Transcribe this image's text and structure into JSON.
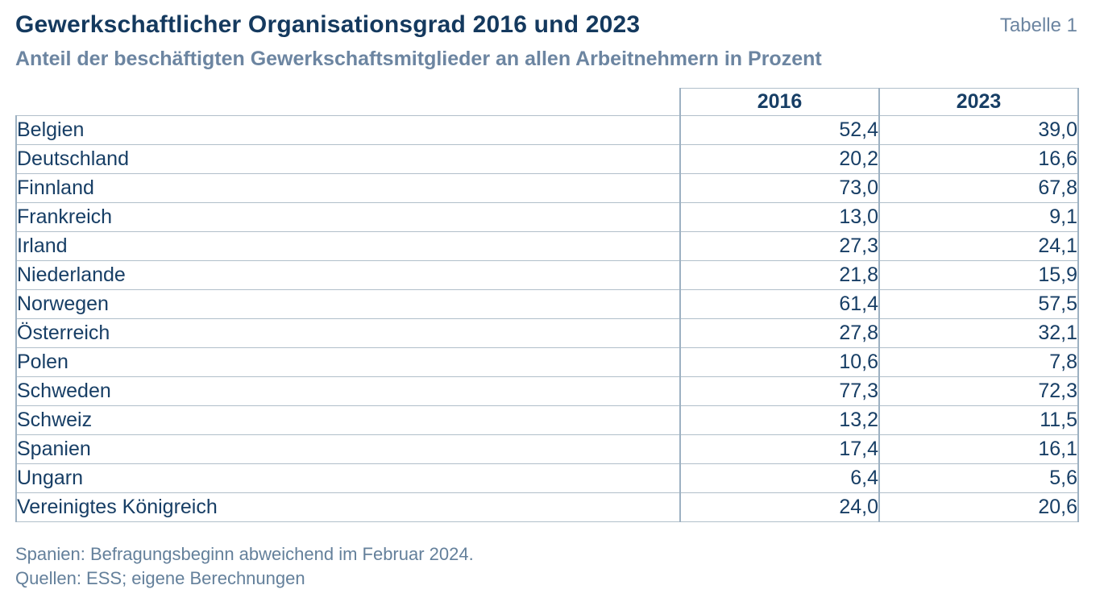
{
  "header": {
    "title": "Gewerkschaftlicher Organisationsgrad 2016 und 2023",
    "subtitle": "Anteil der beschäftigten Gewerkschaftsmitglieder an allen Arbeitnehmern in Prozent",
    "table_label": "Tabelle 1"
  },
  "table": {
    "columns": [
      "2016",
      "2023"
    ],
    "rows": [
      {
        "country": "Belgien",
        "v2016": "52,4",
        "v2023": "39,0"
      },
      {
        "country": "Deutschland",
        "v2016": "20,2",
        "v2023": "16,6"
      },
      {
        "country": "Finnland",
        "v2016": "73,0",
        "v2023": "67,8"
      },
      {
        "country": "Frankreich",
        "v2016": "13,0",
        "v2023": "9,1"
      },
      {
        "country": "Irland",
        "v2016": "27,3",
        "v2023": "24,1"
      },
      {
        "country": "Niederlande",
        "v2016": "21,8",
        "v2023": "15,9"
      },
      {
        "country": "Norwegen",
        "v2016": "61,4",
        "v2023": "57,5"
      },
      {
        "country": "Österreich",
        "v2016": "27,8",
        "v2023": "32,1"
      },
      {
        "country": "Polen",
        "v2016": "10,6",
        "v2023": "7,8"
      },
      {
        "country": "Schweden",
        "v2016": "77,3",
        "v2023": "72,3"
      },
      {
        "country": "Schweiz",
        "v2016": "13,2",
        "v2023": "11,5"
      },
      {
        "country": "Spanien",
        "v2016": "17,4",
        "v2023": "16,1"
      },
      {
        "country": "Ungarn",
        "v2016": "6,4",
        "v2023": "5,6"
      },
      {
        "country": "Vereinigtes Königreich",
        "v2016": "24,0",
        "v2023": "20,6"
      }
    ]
  },
  "footnotes": [
    "Spanien: Befragungsbeginn abweichend im Februar 2024.",
    "Quellen: ESS; eigene Berechnungen"
  ],
  "colors": {
    "title_text": "#14395e",
    "body_text": "#173e65",
    "muted_text": "#6c85a1",
    "footnote_text": "#64809b",
    "border_horizontal": "#b1bfca",
    "border_vertical": "#9db1c2",
    "background": "#ffffff"
  },
  "chart_data": {
    "type": "table",
    "title": "Gewerkschaftlicher Organisationsgrad 2016 und 2023",
    "subtitle": "Anteil der beschäftigten Gewerkschaftsmitglieder an allen Arbeitnehmern in Prozent",
    "unit": "Prozent",
    "categories": [
      "Belgien",
      "Deutschland",
      "Finnland",
      "Frankreich",
      "Irland",
      "Niederlande",
      "Norwegen",
      "Österreich",
      "Polen",
      "Schweden",
      "Schweiz",
      "Spanien",
      "Ungarn",
      "Vereinigtes Königreich"
    ],
    "series": [
      {
        "name": "2016",
        "values": [
          52.4,
          20.2,
          73.0,
          13.0,
          27.3,
          21.8,
          61.4,
          27.8,
          10.6,
          77.3,
          13.2,
          17.4,
          6.4,
          24.0
        ]
      },
      {
        "name": "2023",
        "values": [
          39.0,
          16.6,
          67.8,
          9.1,
          24.1,
          15.9,
          57.5,
          32.1,
          7.8,
          72.3,
          11.5,
          16.1,
          5.6,
          20.6
        ]
      }
    ],
    "notes": [
      "Spanien: Befragungsbeginn abweichend im Februar 2024.",
      "Quellen: ESS; eigene Berechnungen"
    ]
  }
}
